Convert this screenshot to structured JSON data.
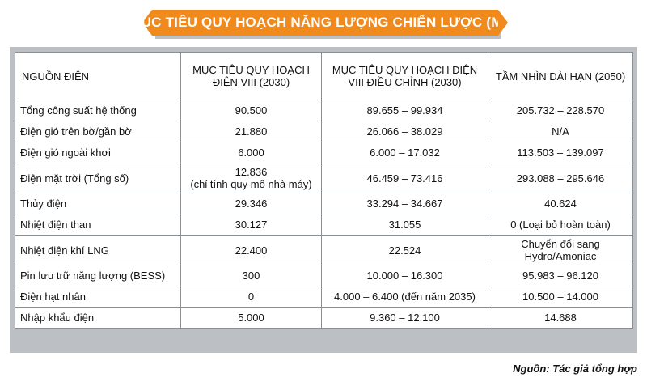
{
  "title": "MỤC TIÊU QUY HOẠCH NĂNG LƯỢNG CHIẾN LƯỢC (MW)",
  "table": {
    "headers": [
      [
        "NGUỒN ĐIỆN"
      ],
      [
        "MỤC TIÊU QUY HOẠCH",
        "ĐIỆN VIII (2030)"
      ],
      [
        "MỤC TIÊU QUY HOẠCH ĐIỆN",
        "VIII ĐIỀU CHỈNH (2030)"
      ],
      [
        "TẦM NHÌN DÀI HẠN (2050)"
      ]
    ],
    "rows": [
      [
        [
          "Tổng công suất hệ thống"
        ],
        [
          "90.500"
        ],
        [
          "89.655 – 99.934"
        ],
        [
          "205.732 – 228.570"
        ]
      ],
      [
        [
          "Điện gió trên bờ/gần bờ"
        ],
        [
          "21.880"
        ],
        [
          "26.066 – 38.029"
        ],
        [
          "N/A"
        ]
      ],
      [
        [
          "Điện gió ngoài khơi"
        ],
        [
          "6.000"
        ],
        [
          "6.000 – 17.032"
        ],
        [
          "113.503 – 139.097"
        ]
      ],
      [
        [
          "Điện mặt trời (Tổng số)"
        ],
        [
          "12.836",
          "(chỉ tính quy mô nhà máy)"
        ],
        [
          "46.459 – 73.416"
        ],
        [
          "293.088 – 295.646"
        ]
      ],
      [
        [
          "Thủy điện"
        ],
        [
          "29.346"
        ],
        [
          "33.294 – 34.667"
        ],
        [
          "40.624"
        ]
      ],
      [
        [
          "Nhiệt điện than"
        ],
        [
          "30.127"
        ],
        [
          "31.055"
        ],
        [
          "0  (Loại bỏ hoàn toàn)"
        ]
      ],
      [
        [
          "Nhiệt điện khí LNG"
        ],
        [
          "22.400"
        ],
        [
          "22.524"
        ],
        [
          "Chuyển đổi sang",
          "Hydro/Amoniac"
        ]
      ],
      [
        [
          "Pin lưu trữ năng lượng (BESS)"
        ],
        [
          "300"
        ],
        [
          "10.000 – 16.300"
        ],
        [
          "95.983 – 96.120"
        ]
      ],
      [
        [
          "Điện hạt nhân"
        ],
        [
          "0"
        ],
        [
          "4.000 – 6.400  (đến năm 2035)"
        ],
        [
          "10.500 – 14.000"
        ]
      ],
      [
        [
          "Nhập khẩu điện"
        ],
        [
          "5.000"
        ],
        [
          "9.360 – 12.100"
        ],
        [
          "14.688"
        ]
      ]
    ]
  },
  "source_note": "Nguồn: Tác giả tổng hợp",
  "colors": {
    "banner": "#f08a1c",
    "frame": "#bcc0c4",
    "border": "#8a8f94"
  }
}
